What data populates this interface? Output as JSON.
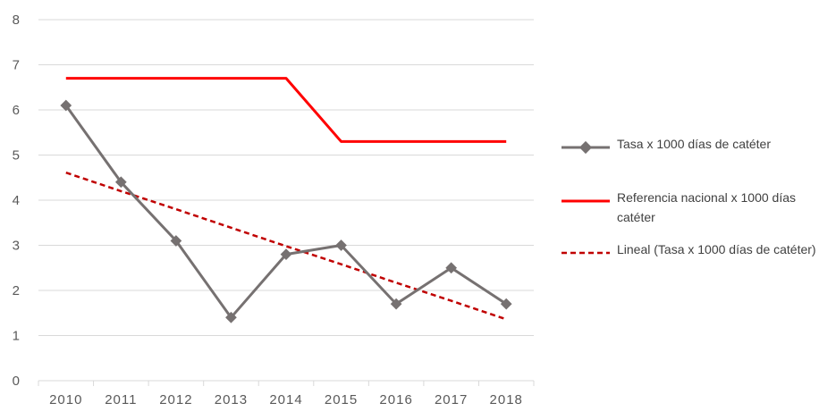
{
  "chart_data": {
    "type": "line",
    "categories": [
      "2010",
      "2011",
      "2012",
      "2013",
      "2014",
      "2015",
      "2016",
      "2017",
      "2018"
    ],
    "ylim": [
      0,
      8
    ],
    "yticks": [
      "0",
      "1",
      "2",
      "3",
      "4",
      "5",
      "6",
      "7",
      "8"
    ],
    "grid": true,
    "legend_position": "right",
    "series": [
      {
        "name": "Tasa x 1000 días de catéter",
        "values": [
          6.1,
          4.4,
          3.1,
          1.4,
          2.8,
          3.0,
          1.7,
          2.5,
          1.7
        ],
        "color": "#767171",
        "marker": "diamond",
        "style": "solid"
      },
      {
        "name": "Referencia nacional x 1000 días catéter",
        "values": [
          6.7,
          6.7,
          6.7,
          6.7,
          6.7,
          5.3,
          5.3,
          5.3,
          5.3
        ],
        "color": "#ff0000",
        "marker": "none",
        "style": "solid"
      },
      {
        "name": "Lineal (Tasa x 1000 días de catéter)",
        "values": [
          4.61,
          4.2,
          3.8,
          3.39,
          2.98,
          2.58,
          2.17,
          1.77,
          1.36
        ],
        "color": "#c00000",
        "marker": "none",
        "style": "dashed"
      }
    ]
  },
  "colors": {
    "grid": "#d9d9d9",
    "axis_text": "#595959"
  }
}
